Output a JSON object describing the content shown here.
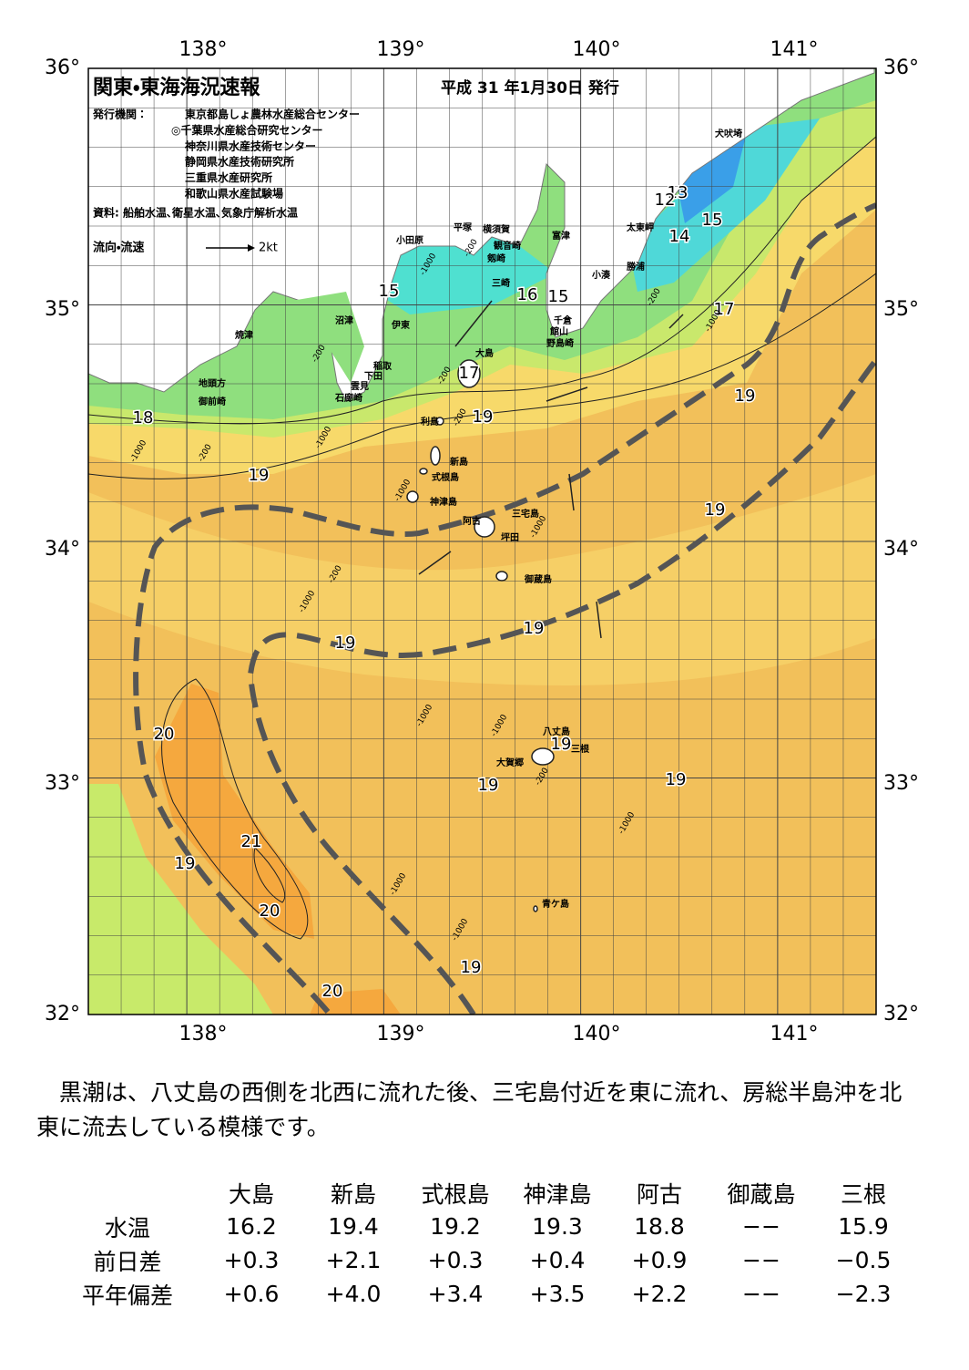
{
  "map": {
    "title": "関東・東海海況速報",
    "issued": "平成 31 年1月30日 発行",
    "publisher_label": "発行機関：",
    "publishers": [
      "東京都島しょ農林水産総合センター",
      "◎千葉県水産総合研究センター",
      "神奈川県水産技術センター",
      "静岡県水産技術研究所",
      "三重県水産研究所",
      "和歌山県水産試験場"
    ],
    "source": "資料: 船舶水温､衛星水温､気象庁解析水温",
    "legend": {
      "label": "流向・流速",
      "scale": "2kt"
    },
    "lon_ticks": [
      "138°",
      "139°",
      "140°",
      "141°"
    ],
    "lat_ticks": [
      "36°",
      "35°",
      "34°",
      "33°",
      "32°"
    ],
    "places": [
      "犬吠埼",
      "太東岬",
      "勝浦",
      "小湊",
      "富津",
      "館山",
      "千倉",
      "野島崎",
      "横須賀",
      "平塚",
      "観音崎",
      "剱崎",
      "三崎",
      "小田原",
      "沼津",
      "伊東",
      "焼津",
      "稲取",
      "下田",
      "雲見",
      "石廊崎",
      "地頭方",
      "御前崎",
      "大島",
      "利島",
      "新島",
      "式根島",
      "神津島",
      "三宅島",
      "阿古",
      "坪田",
      "御蔵島",
      "八丈島",
      "三根",
      "大賀郷",
      "青ケ島"
    ],
    "temperature_labels": [
      13,
      12,
      14,
      15,
      15,
      16,
      15,
      17,
      17,
      19,
      18,
      19,
      19,
      19,
      19,
      19,
      20,
      19,
      19,
      19,
      21,
      19,
      20,
      19,
      20
    ],
    "depth_labels": [
      -1000,
      -200,
      -200,
      -1000,
      -200,
      -200,
      -200,
      -1000,
      -1000,
      -200,
      -1000,
      -1000,
      -200,
      -1000,
      -1000,
      -1000,
      -200,
      -1000,
      -1000,
      -1000
    ]
  },
  "summary": "黒潮は、八丈島の西側を北西に流れた後、三宅島付近を東に流れ、房総半島沖を北東に流去している模様です。",
  "table": {
    "columns": [
      "大島",
      "新島",
      "式根島",
      "神津島",
      "阿古",
      "御蔵島",
      "三根"
    ],
    "rows": [
      {
        "label": "水温",
        "values": [
          "16.2",
          "19.4",
          "19.2",
          "19.3",
          "18.8",
          "−−",
          "15.9"
        ]
      },
      {
        "label": "前日差",
        "values": [
          "+0.3",
          "+2.1",
          "+0.3",
          "+0.4",
          "+0.9",
          "−−",
          "−0.5"
        ]
      },
      {
        "label": "平年偏差",
        "values": [
          "+0.6",
          "+4.0",
          "+3.4",
          "+3.5",
          "+2.2",
          "−−",
          "−2.3"
        ]
      }
    ]
  }
}
